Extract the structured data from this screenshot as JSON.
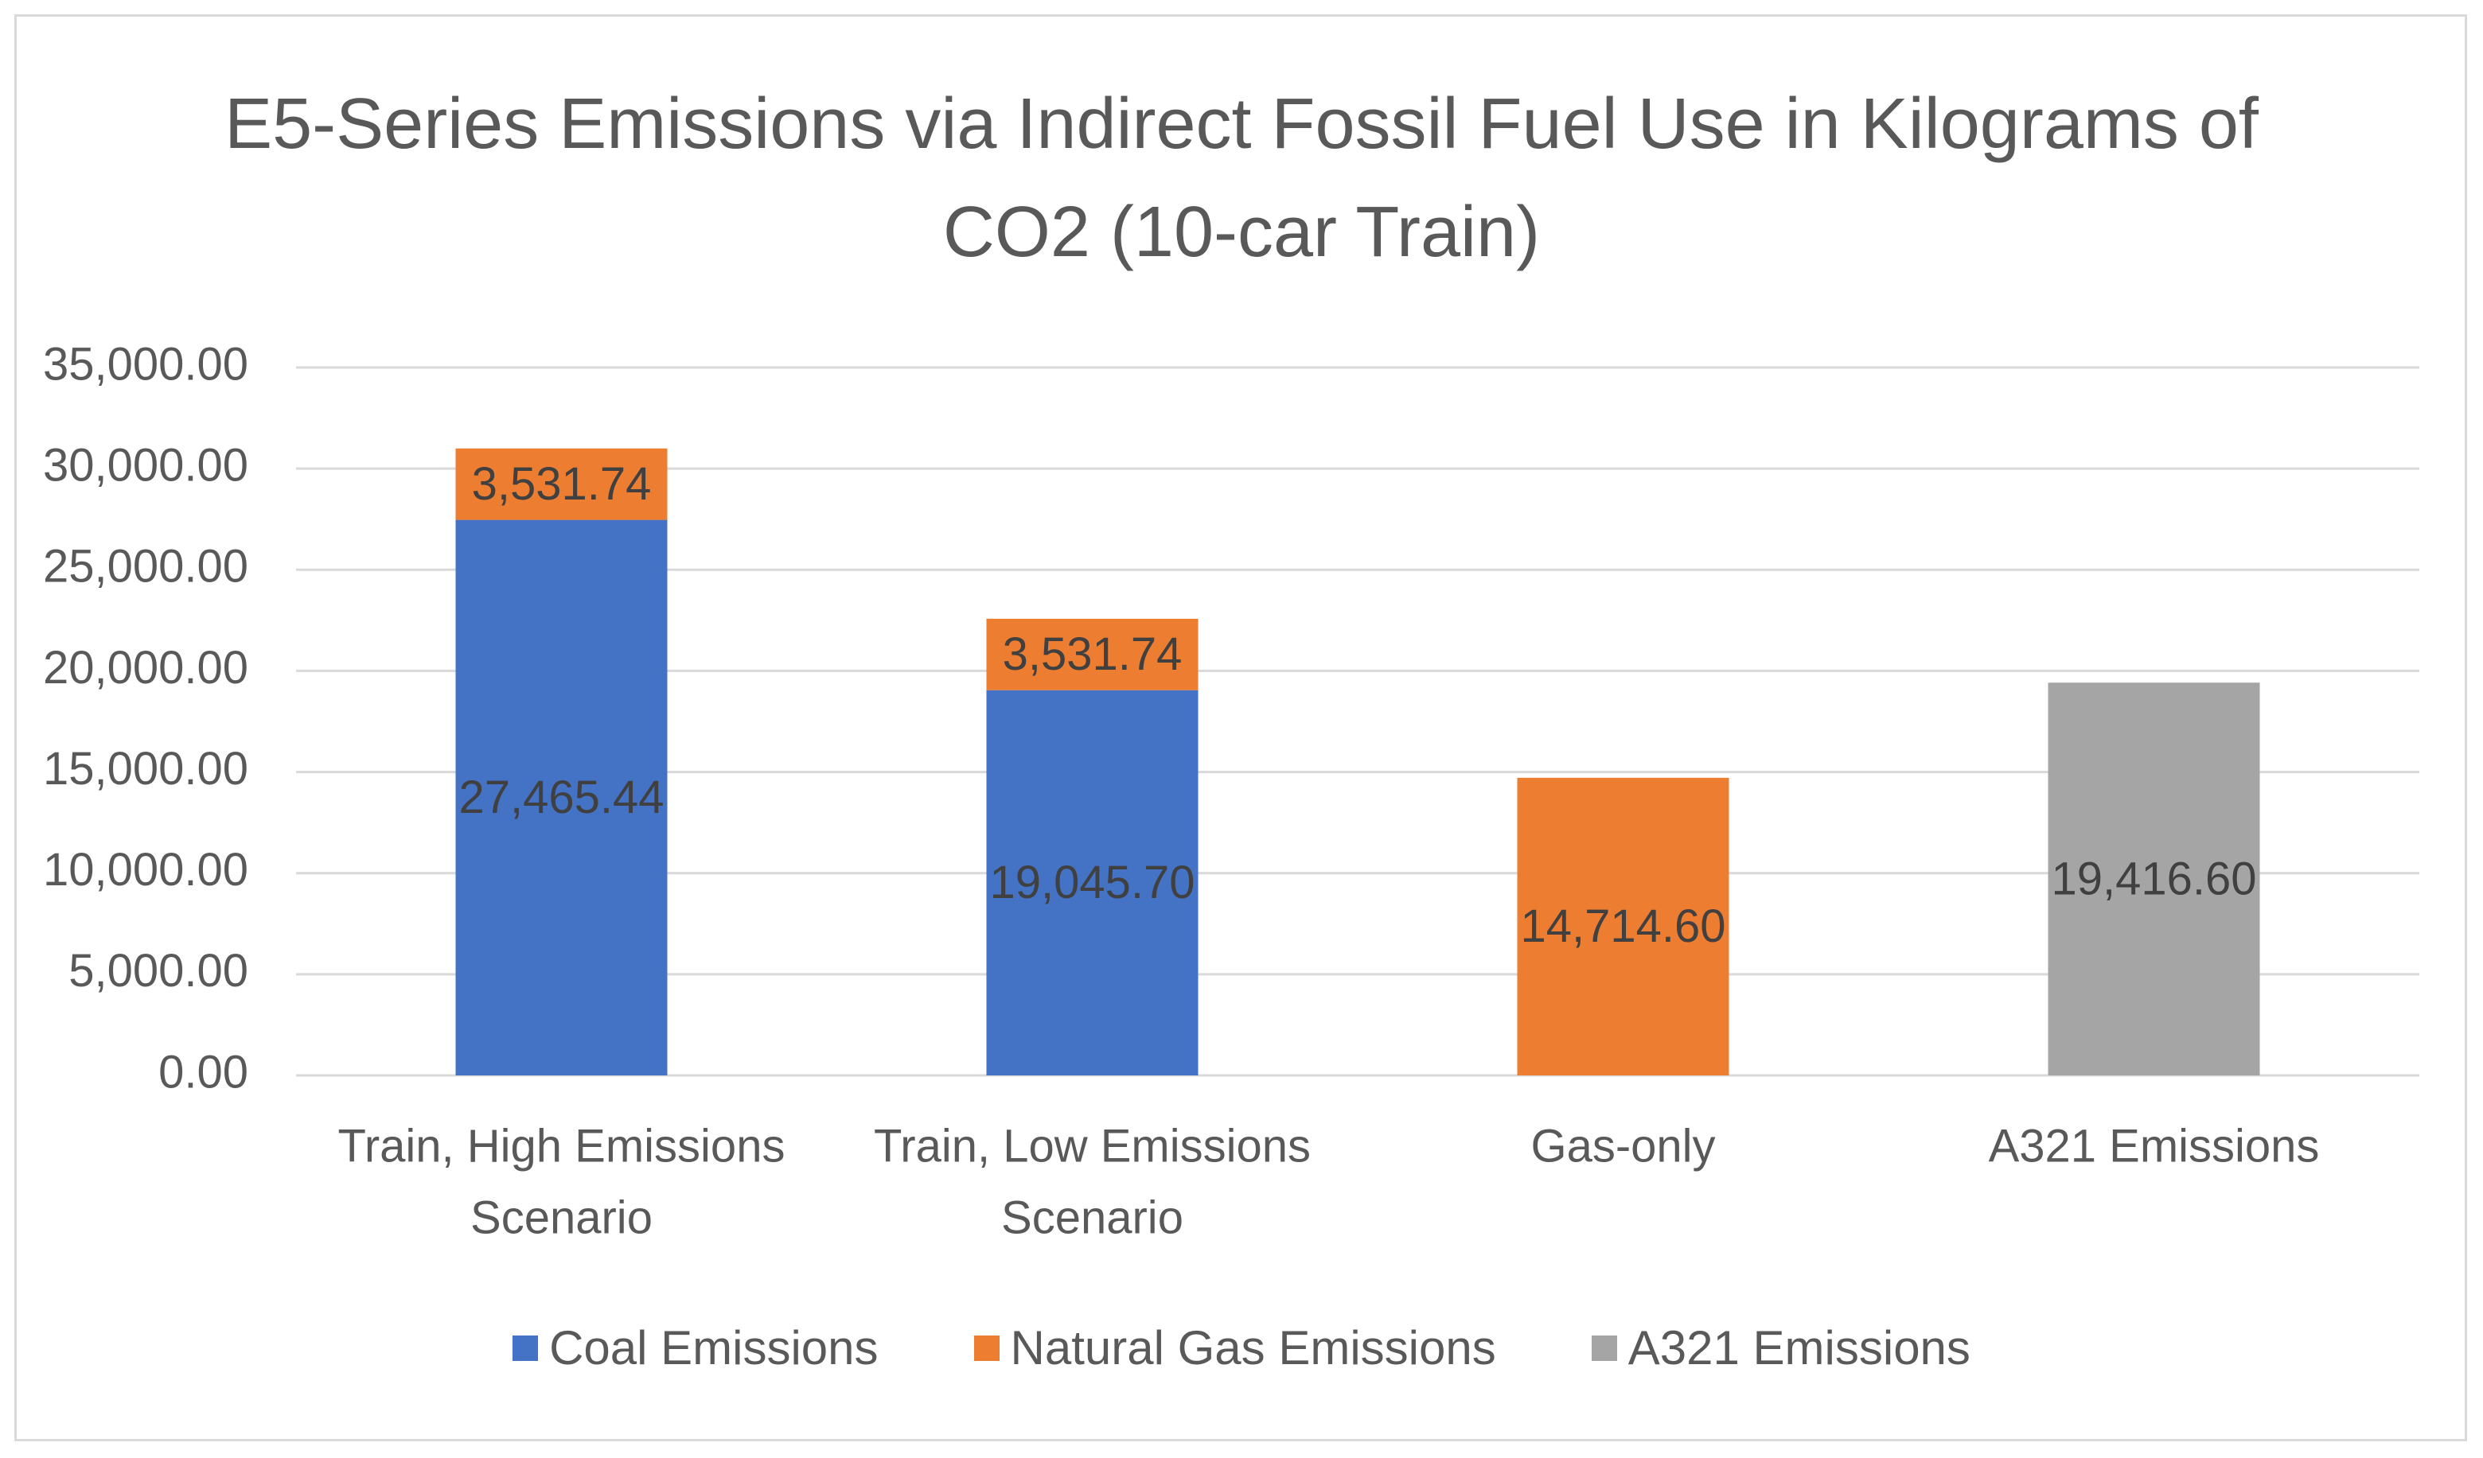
{
  "chart_data": {
    "type": "bar",
    "stacked": true,
    "title": "E5-Series Emissions via Indirect Fossil Fuel Use in Kilograms of CO2 (10-car Train)",
    "title_lines": [
      "E5-Series Emissions via Indirect Fossil Fuel Use in Kilograms of",
      "CO2 (10-car Train)"
    ],
    "xlabel": "",
    "ylabel": "",
    "ylim": [
      0,
      35000
    ],
    "ytick_values": [
      0,
      5000,
      10000,
      15000,
      20000,
      25000,
      30000,
      35000
    ],
    "ytick_labels": [
      "0.00",
      "5,000.00",
      "10,000.00",
      "15,000.00",
      "20,000.00",
      "25,000.00",
      "30,000.00",
      "35,000.00"
    ],
    "grid": true,
    "legend_position": "bottom",
    "categories": [
      [
        "Train, High Emissions",
        "Scenario"
      ],
      [
        "Train, Low Emissions",
        "Scenario"
      ],
      [
        "Gas-only"
      ],
      [
        "A321 Emissions"
      ]
    ],
    "series": [
      {
        "name": "Coal Emissions",
        "color": "#4472c4",
        "values": [
          27465.44,
          19045.7,
          null,
          null
        ],
        "labels": [
          "27,465.44",
          "19,045.70",
          "",
          ""
        ]
      },
      {
        "name": "Natural Gas Emissions",
        "color": "#ed7d31",
        "values": [
          3531.74,
          3531.74,
          14714.6,
          null
        ],
        "labels": [
          "3,531.74",
          "3,531.74",
          "14,714.60",
          ""
        ]
      },
      {
        "name": "A321 Emissions",
        "color": "#a5a5a5",
        "values": [
          null,
          null,
          null,
          19416.6
        ],
        "labels": [
          "",
          "",
          "",
          "19,416.60"
        ]
      }
    ]
  }
}
